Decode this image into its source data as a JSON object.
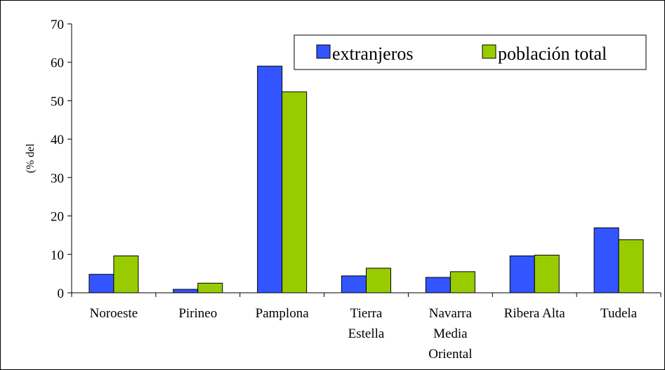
{
  "chart_data": {
    "type": "bar",
    "title": "",
    "xlabel": "",
    "ylabel": "(% del",
    "ylim": [
      0,
      70
    ],
    "yticks": [
      0,
      10,
      20,
      30,
      40,
      50,
      60,
      70
    ],
    "grid": false,
    "legend_position": "top-right",
    "categories": [
      [
        "Noroeste"
      ],
      [
        "Pirineo"
      ],
      [
        "Pamplona"
      ],
      [
        "Tierra",
        "Estella"
      ],
      [
        "Navarra",
        "Media",
        "Oriental"
      ],
      [
        "Ribera Alta"
      ],
      [
        "Tudela"
      ]
    ],
    "series": [
      {
        "name": "extranjeros",
        "color": "#3355ff",
        "values": [
          4.8,
          0.9,
          59.0,
          4.4,
          4.0,
          9.6,
          16.9
        ]
      },
      {
        "name": "población total",
        "color": "#99cc00",
        "values": [
          9.6,
          2.5,
          52.3,
          6.4,
          5.5,
          9.8,
          13.8
        ]
      }
    ]
  }
}
